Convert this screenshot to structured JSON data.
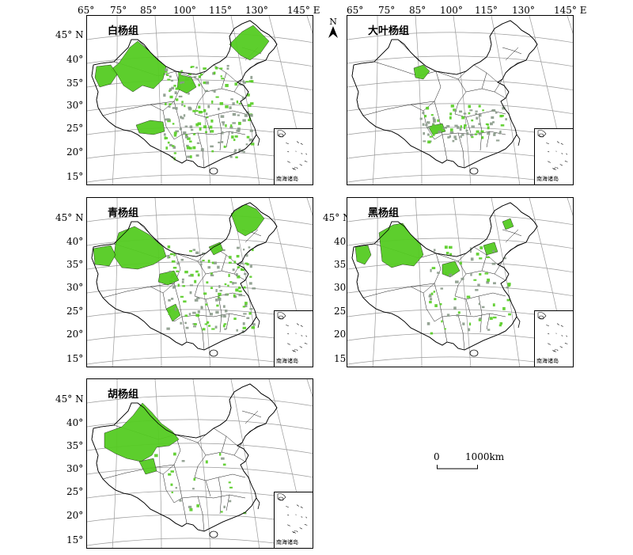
{
  "lon_labels": [
    "65°",
    "75°",
    "85°",
    "100°",
    "115°",
    "130°",
    "145° E"
  ],
  "lat_labels": [
    "45° N",
    "40°",
    "35°",
    "30°",
    "25°",
    "20°",
    "15°"
  ],
  "north_label": "N",
  "inset_label": "南海诸岛",
  "scale": {
    "zero": "0",
    "end": "1000km"
  },
  "colors": {
    "fill": "#55cc22",
    "dots": "#8a9a8a",
    "graticule": "#9a9a9a",
    "border": "#000000"
  },
  "panels": [
    {
      "name": "白杨组"
    },
    {
      "name": "大叶杨组"
    },
    {
      "name": "青杨组"
    },
    {
      "name": "黑杨组"
    },
    {
      "name": "胡杨组"
    }
  ]
}
